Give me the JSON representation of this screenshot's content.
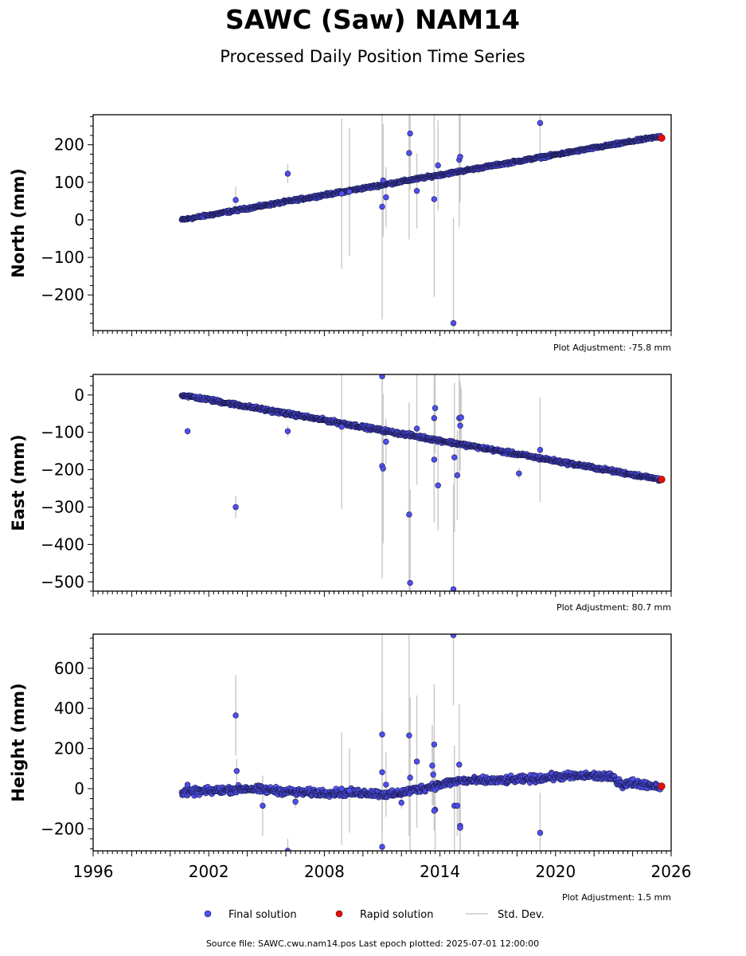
{
  "figure": {
    "title": "SAWC (Saw) NAM14",
    "subtitle": "Processed Daily Position Time Series",
    "source_note": "Source file: SAWC.cwu.nam14.pos  Last epoch plotted: 2025-07-01 12:00:00",
    "colors": {
      "final": "#4f4fef",
      "final_edge": "#1a1a4a",
      "rapid": "#e01010",
      "stddev": "#c8c8c8"
    }
  },
  "legend": {
    "final_label": "Final solution",
    "rapid_label": "Rapid solution",
    "stddev_label": "Std. Dev."
  },
  "chart_data": [
    {
      "type": "scatter",
      "ylabel": "North (mm)",
      "adjustment": "Plot Adjustment: -75.8 mm",
      "ylim": [
        -295,
        280
      ],
      "yticks": [
        -200,
        -100,
        0,
        100,
        200
      ],
      "xlim": [
        1996,
        2026
      ],
      "trend": {
        "x0": 2000.6,
        "y0": 0,
        "rate": 8.95
      },
      "scatter": 3,
      "outliers": [
        {
          "x": 2003.4,
          "y": 53,
          "sd": 35
        },
        {
          "x": 2006.1,
          "y": 123,
          "sd": 25
        },
        {
          "x": 2008.9,
          "y": 70,
          "sd": 200
        },
        {
          "x": 2009.3,
          "y": 75,
          "sd": 170
        },
        {
          "x": 2011.0,
          "y": 35,
          "sd": 300
        },
        {
          "x": 2011.05,
          "y": 105,
          "sd": 150
        },
        {
          "x": 2011.2,
          "y": 60,
          "sd": 80
        },
        {
          "x": 2012.4,
          "y": 178,
          "sd": 230
        },
        {
          "x": 2012.45,
          "y": 230,
          "sd": 150
        },
        {
          "x": 2012.8,
          "y": 77,
          "sd": 100
        },
        {
          "x": 2013.7,
          "y": 55,
          "sd": 260
        },
        {
          "x": 2013.9,
          "y": 145,
          "sd": 120
        },
        {
          "x": 2014.7,
          "y": -275,
          "sd": 280
        },
        {
          "x": 2015.0,
          "y": 160,
          "sd": 180
        },
        {
          "x": 2015.05,
          "y": 168,
          "sd": 120
        },
        {
          "x": 2019.2,
          "y": 258,
          "sd": 80
        }
      ],
      "rapid": [
        {
          "x": 2025.5,
          "y": 218
        }
      ]
    },
    {
      "type": "scatter",
      "ylabel": "East (mm)",
      "adjustment": "Plot Adjustment: 80.7 mm",
      "ylim": [
        -525,
        55
      ],
      "yticks": [
        -500,
        -400,
        -300,
        -200,
        -100,
        0
      ],
      "xlim": [
        1996,
        2026
      ],
      "trend": {
        "x0": 2000.6,
        "y0": 0,
        "rate": -9.1
      },
      "scatter": 4,
      "outliers": [
        {
          "x": 2000.9,
          "y": -97,
          "sd": 10
        },
        {
          "x": 2003.4,
          "y": -300,
          "sd": 30
        },
        {
          "x": 2006.1,
          "y": -97,
          "sd": 15
        },
        {
          "x": 2008.9,
          "y": -85,
          "sd": 220
        },
        {
          "x": 2011.0,
          "y": 50,
          "sd": 180
        },
        {
          "x": 2011.0,
          "y": -190,
          "sd": 300
        },
        {
          "x": 2011.05,
          "y": -197,
          "sd": 200
        },
        {
          "x": 2011.2,
          "y": -125,
          "sd": 60
        },
        {
          "x": 2012.4,
          "y": -320,
          "sd": 300
        },
        {
          "x": 2012.45,
          "y": -503,
          "sd": 250
        },
        {
          "x": 2012.8,
          "y": -90,
          "sd": 150
        },
        {
          "x": 2013.7,
          "y": -62,
          "sd": 280
        },
        {
          "x": 2013.75,
          "y": -35,
          "sd": 120
        },
        {
          "x": 2013.7,
          "y": -173,
          "sd": 100
        },
        {
          "x": 2013.9,
          "y": -242,
          "sd": 120
        },
        {
          "x": 2014.7,
          "y": -520,
          "sd": 280
        },
        {
          "x": 2014.75,
          "y": -167,
          "sd": 200
        },
        {
          "x": 2014.9,
          "y": -215,
          "sd": 120
        },
        {
          "x": 2015.0,
          "y": -62,
          "sd": 150
        },
        {
          "x": 2015.05,
          "y": -82,
          "sd": 120
        },
        {
          "x": 2015.1,
          "y": -60,
          "sd": 80
        },
        {
          "x": 2018.1,
          "y": -210,
          "sd": 15
        },
        {
          "x": 2019.2,
          "y": -147,
          "sd": 140
        }
      ],
      "rapid": [
        {
          "x": 2025.5,
          "y": -226
        }
      ]
    },
    {
      "type": "scatter",
      "ylabel": "Height (mm)",
      "adjustment": "Plot Adjustment: 1.5 mm",
      "ylim": [
        -310,
        770
      ],
      "yticks": [
        -200,
        0,
        200,
        400,
        600
      ],
      "xlim": [
        1996,
        2026
      ],
      "xticks": [
        1996,
        2002,
        2008,
        2014,
        2020,
        2026
      ],
      "trend_points": [
        [
          2000.6,
          -20
        ],
        [
          2004.0,
          0
        ],
        [
          2007.0,
          -20
        ],
        [
          2010.0,
          -20
        ],
        [
          2011.5,
          -30
        ],
        [
          2013.0,
          0
        ],
        [
          2015.0,
          40
        ],
        [
          2017.0,
          40
        ],
        [
          2019.0,
          50
        ],
        [
          2020.0,
          60
        ],
        [
          2022.0,
          65
        ],
        [
          2023.0,
          55
        ],
        [
          2023.5,
          20
        ],
        [
          2024.0,
          30
        ],
        [
          2025.5,
          10
        ]
      ],
      "scatter": 15,
      "outliers": [
        {
          "x": 2000.9,
          "y": 20,
          "sd": 15
        },
        {
          "x": 2003.4,
          "y": 365,
          "sd": 200
        },
        {
          "x": 2003.45,
          "y": 88,
          "sd": 60
        },
        {
          "x": 2004.8,
          "y": -85,
          "sd": 150
        },
        {
          "x": 2006.1,
          "y": -310,
          "sd": 60
        },
        {
          "x": 2006.5,
          "y": -65,
          "sd": 30
        },
        {
          "x": 2008.9,
          "y": 0,
          "sd": 280
        },
        {
          "x": 2009.3,
          "y": -10,
          "sd": 210
        },
        {
          "x": 2011.0,
          "y": 270,
          "sd": 500
        },
        {
          "x": 2011.0,
          "y": 82,
          "sd": 300
        },
        {
          "x": 2011.0,
          "y": -290,
          "sd": 400
        },
        {
          "x": 2011.2,
          "y": 20,
          "sd": 160
        },
        {
          "x": 2012.0,
          "y": -70,
          "sd": 30
        },
        {
          "x": 2012.4,
          "y": 265,
          "sd": 500
        },
        {
          "x": 2012.45,
          "y": 55,
          "sd": 400
        },
        {
          "x": 2012.8,
          "y": 135,
          "sd": 330
        },
        {
          "x": 2013.6,
          "y": 115,
          "sd": 200
        },
        {
          "x": 2013.7,
          "y": 220,
          "sd": 300
        },
        {
          "x": 2013.75,
          "y": -105,
          "sd": 200
        },
        {
          "x": 2013.7,
          "y": -110,
          "sd": 100
        },
        {
          "x": 2013.65,
          "y": 70,
          "sd": 150
        },
        {
          "x": 2014.7,
          "y": 765,
          "sd": 350
        },
        {
          "x": 2014.75,
          "y": -85,
          "sd": 300
        },
        {
          "x": 2014.9,
          "y": -85,
          "sd": 150
        },
        {
          "x": 2015.0,
          "y": 120,
          "sd": 300
        },
        {
          "x": 2015.05,
          "y": -185,
          "sd": 200
        },
        {
          "x": 2015.05,
          "y": -195,
          "sd": 150
        },
        {
          "x": 2019.2,
          "y": -220,
          "sd": 200
        }
      ],
      "rapid": [
        {
          "x": 2025.5,
          "y": 12
        }
      ]
    }
  ]
}
